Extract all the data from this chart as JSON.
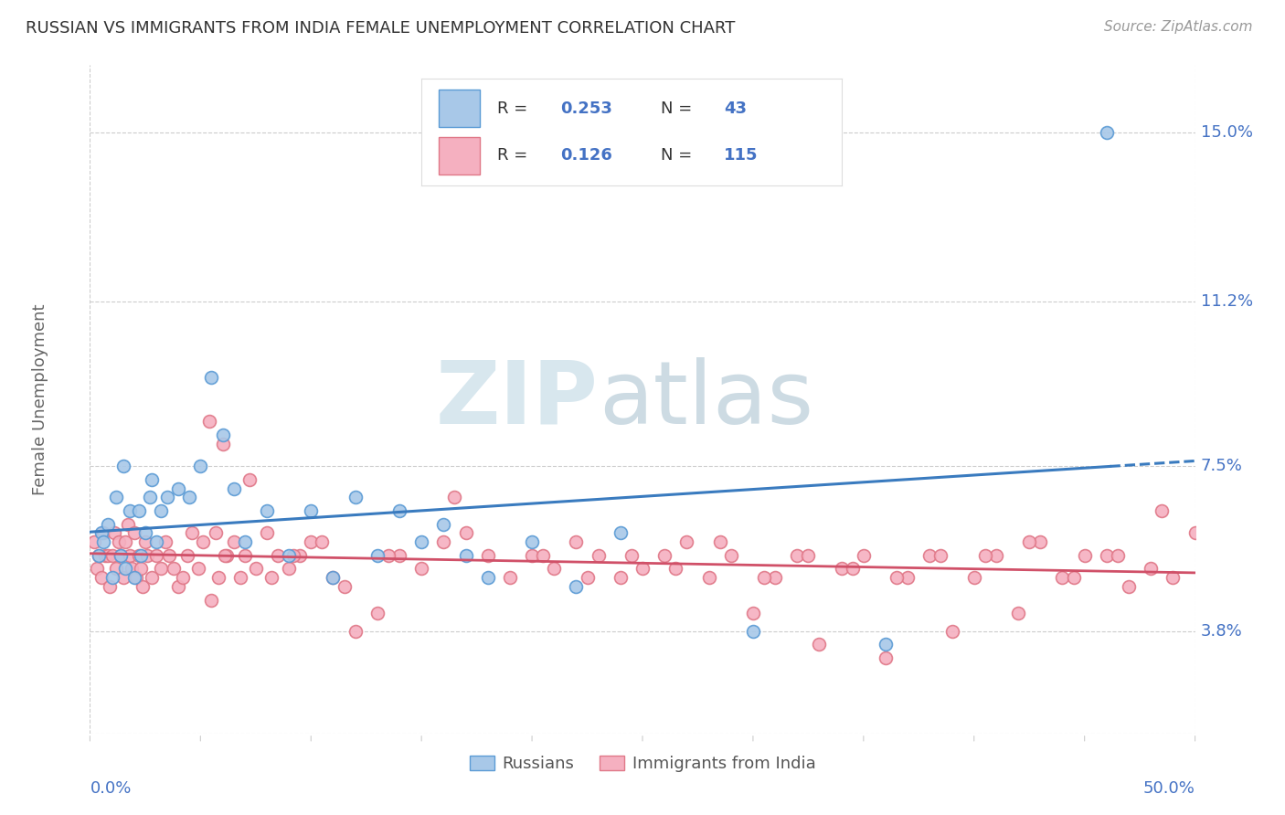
{
  "title": "RUSSIAN VS IMMIGRANTS FROM INDIA FEMALE UNEMPLOYMENT CORRELATION CHART",
  "source": "Source: ZipAtlas.com",
  "ylabel": "Female Unemployment",
  "ytick_labels": [
    "3.8%",
    "7.5%",
    "11.2%",
    "15.0%"
  ],
  "ytick_values": [
    3.8,
    7.5,
    11.2,
    15.0
  ],
  "xlim": [
    0.0,
    50.0
  ],
  "ylim": [
    1.5,
    16.5
  ],
  "legend_label_russians": "Russians",
  "legend_label_india": "Immigrants from India",
  "blue_scatter_face": "#a8c8e8",
  "blue_scatter_edge": "#5b9bd5",
  "pink_scatter_face": "#f5b0c0",
  "pink_scatter_edge": "#e07888",
  "blue_line_color": "#3a7bbf",
  "pink_line_color": "#d05068",
  "r_val_blue": "0.253",
  "n_val_blue": "43",
  "r_val_pink": "0.126",
  "n_val_pink": "115",
  "grid_color": "#cccccc",
  "title_color": "#333333",
  "tick_label_color": "#4472c4",
  "watermark_zip_color": "#c8dde8",
  "watermark_atlas_color": "#b8ccd8",
  "russians_x": [
    0.4,
    0.5,
    0.6,
    0.8,
    1.0,
    1.2,
    1.4,
    1.5,
    1.6,
    1.8,
    2.0,
    2.2,
    2.3,
    2.5,
    2.7,
    2.8,
    3.0,
    3.2,
    3.5,
    4.0,
    4.5,
    5.0,
    5.5,
    6.0,
    6.5,
    7.0,
    8.0,
    9.0,
    10.0,
    11.0,
    12.0,
    13.0,
    14.0,
    15.0,
    16.0,
    17.0,
    18.0,
    20.0,
    22.0,
    24.0,
    30.0,
    36.0,
    46.0
  ],
  "russians_y": [
    5.5,
    6.0,
    5.8,
    6.2,
    5.0,
    6.8,
    5.5,
    7.5,
    5.2,
    6.5,
    5.0,
    6.5,
    5.5,
    6.0,
    6.8,
    7.2,
    5.8,
    6.5,
    6.8,
    7.0,
    6.8,
    7.5,
    9.5,
    8.2,
    7.0,
    5.8,
    6.5,
    5.5,
    6.5,
    5.0,
    6.8,
    5.5,
    6.5,
    5.8,
    6.2,
    5.5,
    5.0,
    5.8,
    4.8,
    6.0,
    3.8,
    3.5,
    15.0
  ],
  "india_x": [
    0.2,
    0.3,
    0.4,
    0.5,
    0.6,
    0.7,
    0.8,
    0.9,
    1.0,
    1.1,
    1.2,
    1.3,
    1.4,
    1.5,
    1.6,
    1.7,
    1.8,
    1.9,
    2.0,
    2.1,
    2.2,
    2.3,
    2.4,
    2.5,
    2.6,
    2.8,
    3.0,
    3.2,
    3.4,
    3.6,
    3.8,
    4.0,
    4.2,
    4.4,
    4.6,
    4.9,
    5.1,
    5.4,
    5.7,
    6.0,
    6.2,
    6.5,
    6.8,
    7.0,
    7.5,
    8.0,
    8.5,
    9.0,
    9.5,
    10.0,
    11.0,
    12.0,
    13.0,
    14.0,
    15.0,
    16.0,
    17.0,
    18.0,
    19.0,
    20.0,
    21.0,
    22.0,
    23.0,
    24.0,
    25.0,
    26.0,
    27.0,
    28.0,
    29.0,
    30.0,
    31.0,
    32.0,
    33.0,
    34.0,
    35.0,
    36.0,
    37.0,
    38.0,
    39.0,
    40.0,
    41.0,
    42.0,
    43.0,
    44.0,
    45.0,
    46.0,
    47.0,
    48.0,
    49.0,
    50.0,
    5.5,
    5.8,
    6.1,
    7.2,
    8.2,
    9.2,
    10.5,
    11.5,
    13.5,
    16.5,
    20.5,
    22.5,
    24.5,
    26.5,
    28.5,
    30.5,
    32.5,
    34.5,
    36.5,
    38.5,
    40.5,
    42.5,
    44.5,
    46.5,
    48.5
  ],
  "india_y": [
    5.8,
    5.2,
    5.5,
    5.0,
    6.0,
    5.5,
    5.5,
    4.8,
    5.5,
    6.0,
    5.2,
    5.8,
    5.5,
    5.0,
    5.8,
    6.2,
    5.5,
    5.2,
    6.0,
    5.0,
    5.5,
    5.2,
    4.8,
    5.8,
    5.5,
    5.0,
    5.5,
    5.2,
    5.8,
    5.5,
    5.2,
    4.8,
    5.0,
    5.5,
    6.0,
    5.2,
    5.8,
    8.5,
    6.0,
    8.0,
    5.5,
    5.8,
    5.0,
    5.5,
    5.2,
    6.0,
    5.5,
    5.2,
    5.5,
    5.8,
    5.0,
    3.8,
    4.2,
    5.5,
    5.2,
    5.8,
    6.0,
    5.5,
    5.0,
    5.5,
    5.2,
    5.8,
    5.5,
    5.0,
    5.2,
    5.5,
    5.8,
    5.0,
    5.5,
    4.2,
    5.0,
    5.5,
    3.5,
    5.2,
    5.5,
    3.2,
    5.0,
    5.5,
    3.8,
    5.0,
    5.5,
    4.2,
    5.8,
    5.0,
    5.5,
    5.5,
    4.8,
    5.2,
    5.0,
    6.0,
    4.5,
    5.0,
    5.5,
    7.2,
    5.0,
    5.5,
    5.8,
    4.8,
    5.5,
    6.8,
    5.5,
    5.0,
    5.5,
    5.2,
    5.8,
    5.0,
    5.5,
    5.2,
    5.0,
    5.5,
    5.5,
    5.8,
    5.0,
    5.5,
    6.5
  ]
}
